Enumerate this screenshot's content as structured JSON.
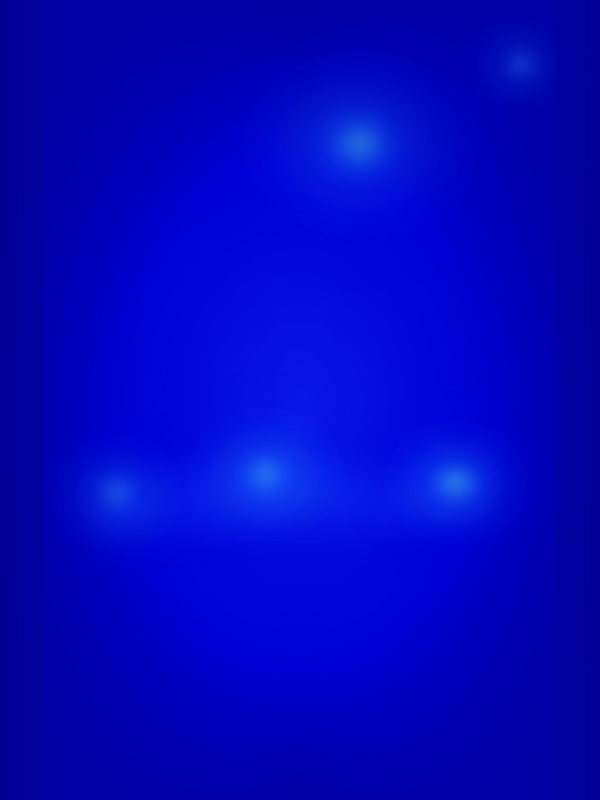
{
  "chart_data": {
    "type": "heatmap",
    "title": "",
    "xlabel": "",
    "ylabel": "",
    "colormap": "jet",
    "grid": false,
    "legend": "none",
    "background_level": 0.18,
    "field": {
      "name": "broad-glow",
      "intensity": 0.22
    },
    "hotspots": [
      {
        "name": "hotspot-top-right",
        "x": 0.868,
        "y": 0.081,
        "intensity": 0.62,
        "spread": 0.022
      },
      {
        "name": "hotspot-bright-right",
        "x": 0.76,
        "y": 0.604,
        "intensity": 0.78,
        "spread": 0.04
      },
      {
        "name": "hotspot-left",
        "x": 0.195,
        "y": 0.616,
        "intensity": 0.56,
        "spread": 0.034
      },
      {
        "name": "hotspot-center",
        "x": 0.442,
        "y": 0.594,
        "intensity": 0.46,
        "spread": 0.046
      },
      {
        "name": "hotspot-center-upper",
        "x": 0.6,
        "y": 0.18,
        "intensity": 0.31,
        "spread": 0.075
      }
    ],
    "colors": {
      "deep": "#00009a",
      "mid": "#0000ff",
      "bright": "#1a5cff",
      "cyan": "#34f4ff",
      "yellow": "#e7ff39"
    }
  }
}
